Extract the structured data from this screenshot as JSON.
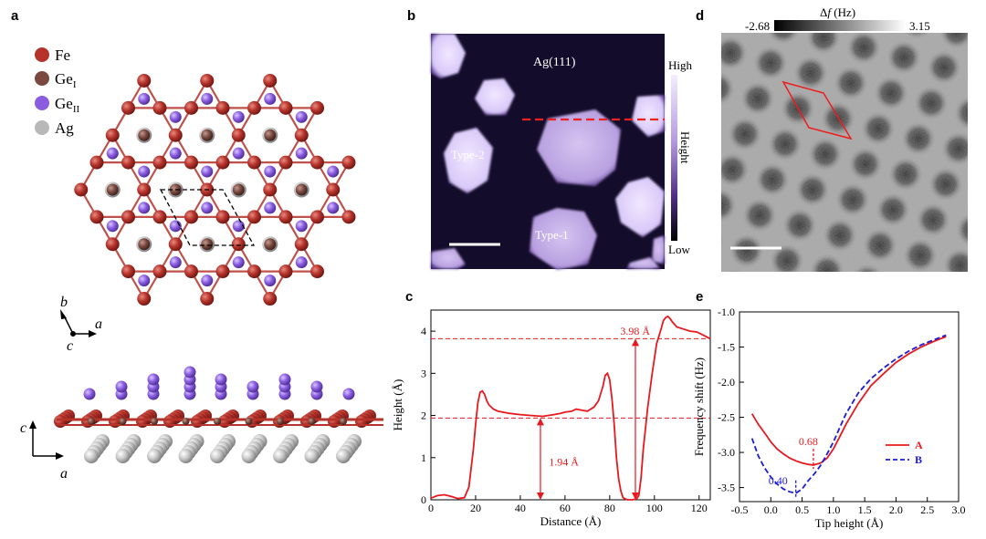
{
  "panels": {
    "a": {
      "letter": "a",
      "legend": [
        {
          "label": "Fe",
          "sub": "",
          "color": "#b5332b"
        },
        {
          "label": "Ge",
          "sub": "I",
          "color": "#7a4a40"
        },
        {
          "label": "Ge",
          "sub": "II",
          "color": "#8a5ce0"
        },
        {
          "label": "Ag",
          "sub": "",
          "color": "#b8b8b8"
        }
      ],
      "axes_top": {
        "b": "b",
        "a": "a",
        "c": "c"
      },
      "axes_side": {
        "c": "c",
        "a": "a"
      }
    },
    "b": {
      "letter": "b",
      "substrate_label": "Ag(111)",
      "type1_label": "Type-1",
      "type2_label": "Type-2",
      "colorbar_high": "High",
      "colorbar_low": "Low",
      "colorbar_title": "Height"
    },
    "c": {
      "letter": "c"
    },
    "d": {
      "letter": "d",
      "colorbar_min": "-2.68",
      "colorbar_max": "3.15",
      "colorbar_label_prefix": "Δ",
      "colorbar_label_var": "f",
      "colorbar_label_unit": " (Hz)"
    },
    "e": {
      "letter": "e"
    }
  },
  "chart_data": [
    {
      "type": "line",
      "panel": "c",
      "xlabel": "Distance (Å)",
      "ylabel": "Height (Å)",
      "xlim": [
        0,
        125
      ],
      "ylim": [
        0,
        4.5
      ],
      "xticks": [
        0,
        20,
        40,
        60,
        80,
        100,
        120
      ],
      "yticks": [
        0,
        1,
        2,
        3,
        4
      ],
      "series": [
        {
          "color": "#e8191e",
          "x": [
            0,
            3,
            6,
            9,
            12,
            15,
            17,
            19,
            20,
            21,
            22,
            23,
            24,
            25,
            26,
            28,
            30,
            35,
            40,
            45,
            50,
            55,
            58,
            60,
            63,
            65,
            68,
            70,
            73,
            75,
            77,
            78,
            79,
            80,
            81,
            82,
            83,
            84,
            85,
            86,
            87,
            88,
            90,
            92,
            93,
            94,
            95,
            97,
            99,
            101,
            103,
            104,
            105,
            106,
            107,
            108,
            110,
            113,
            116,
            119,
            122,
            125
          ],
          "y": [
            0.04,
            0.1,
            0.12,
            0.08,
            0.03,
            0.05,
            0.3,
            1.2,
            1.8,
            2.3,
            2.55,
            2.58,
            2.5,
            2.35,
            2.25,
            2.15,
            2.1,
            2.05,
            2.02,
            2.0,
            1.98,
            2.02,
            2.05,
            2.08,
            2.1,
            2.15,
            2.12,
            2.1,
            2.2,
            2.35,
            2.7,
            2.95,
            3.0,
            2.85,
            2.4,
            1.8,
            1.0,
            0.5,
            0.2,
            0.05,
            0.02,
            0.0,
            0.0,
            0.02,
            0.1,
            0.5,
            1.2,
            2.2,
            3.0,
            3.7,
            4.05,
            4.25,
            4.32,
            4.35,
            4.3,
            4.22,
            4.1,
            4.05,
            4.0,
            3.98,
            3.9,
            3.82
          ]
        }
      ],
      "reference_lines": [
        1.94,
        3.82
      ],
      "annotations": [
        {
          "text": "3.98 Å",
          "x": 88,
          "y": 4.0
        },
        {
          "text": "1.94 Å",
          "x": 52,
          "y": 0.9
        }
      ]
    },
    {
      "type": "line",
      "panel": "e",
      "xlabel": "Tip height (Å)",
      "ylabel": "Frequency shift (Hz)",
      "xlim": [
        -0.5,
        3.0
      ],
      "ylim": [
        -3.7,
        -1.0
      ],
      "xticks": [
        -0.5,
        0.0,
        0.5,
        1.0,
        1.5,
        2.0,
        2.5,
        3.0
      ],
      "yticks": [
        -3.5,
        -3.0,
        -2.5,
        -2.0,
        -1.5,
        -1.0
      ],
      "series": [
        {
          "name": "A",
          "color": "#e8191e",
          "style": "solid",
          "x": [
            -0.3,
            -0.2,
            -0.1,
            0.0,
            0.1,
            0.2,
            0.3,
            0.4,
            0.5,
            0.6,
            0.68,
            0.8,
            0.9,
            1.0,
            1.1,
            1.2,
            1.4,
            1.6,
            1.8,
            2.0,
            2.2,
            2.4,
            2.6,
            2.8
          ],
          "y": [
            -2.45,
            -2.6,
            -2.72,
            -2.85,
            -2.95,
            -3.02,
            -3.08,
            -3.12,
            -3.15,
            -3.17,
            -3.18,
            -3.15,
            -3.08,
            -2.95,
            -2.78,
            -2.6,
            -2.3,
            -2.05,
            -1.88,
            -1.72,
            -1.6,
            -1.5,
            -1.42,
            -1.35
          ]
        },
        {
          "name": "B",
          "color": "#1a1ae0",
          "style": "dashed",
          "x": [
            -0.3,
            -0.2,
            -0.1,
            0.0,
            0.1,
            0.2,
            0.3,
            0.4,
            0.5,
            0.6,
            0.7,
            0.8,
            0.9,
            1.0,
            1.1,
            1.2,
            1.4,
            1.6,
            1.8,
            2.0,
            2.2,
            2.4,
            2.6,
            2.8
          ],
          "y": [
            -2.8,
            -3.05,
            -3.22,
            -3.35,
            -3.45,
            -3.52,
            -3.56,
            -3.58,
            -3.52,
            -3.4,
            -3.3,
            -3.18,
            -3.02,
            -2.85,
            -2.65,
            -2.45,
            -2.15,
            -1.95,
            -1.8,
            -1.67,
            -1.56,
            -1.47,
            -1.4,
            -1.33
          ]
        }
      ],
      "annotations": [
        {
          "text": "0.68",
          "x": 0.68,
          "y": -3.18
        },
        {
          "text": "0.40",
          "x": 0.4,
          "y": -3.58
        }
      ]
    }
  ]
}
